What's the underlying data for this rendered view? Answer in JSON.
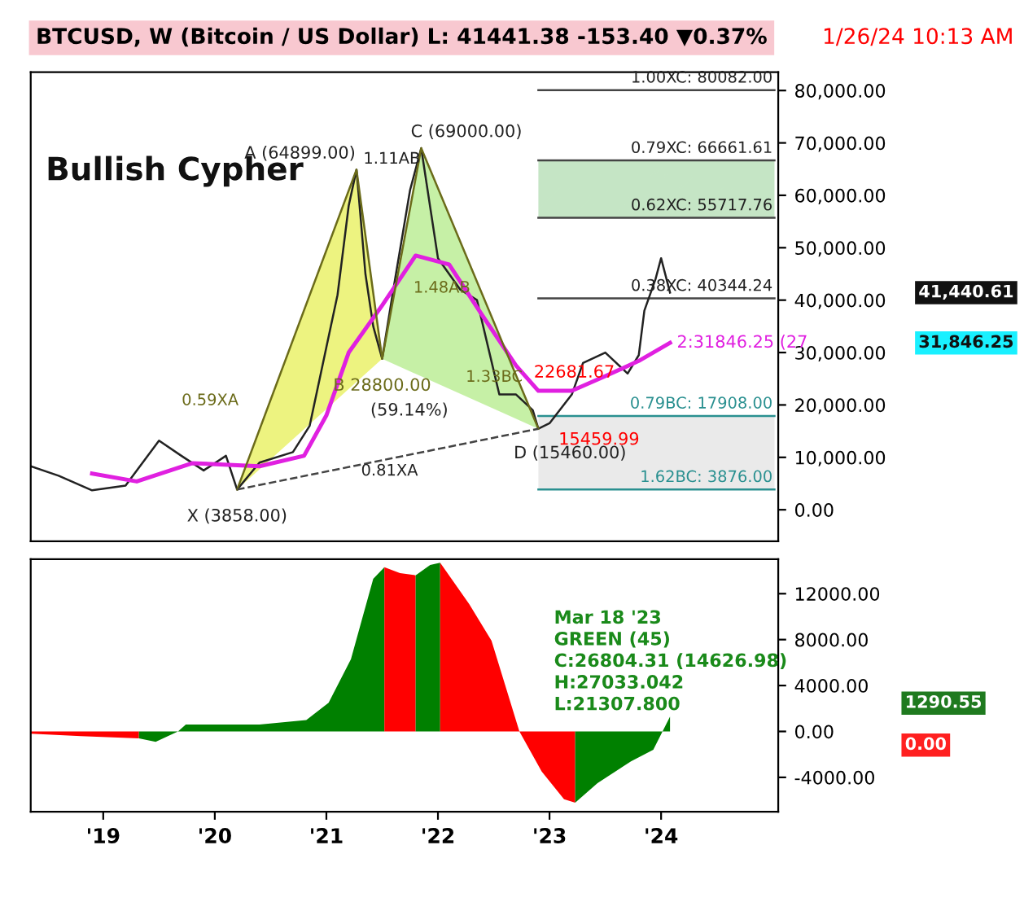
{
  "chart_data": [
    {
      "type": "line",
      "title": "BTCUSD, W (Bitcoin / US Dollar) L: 41441.38 -153.40 ▼0.37%",
      "xlim": [
        2018.35,
        2025.05
      ],
      "ylim": [
        -6000,
        83500
      ],
      "tick_labels": "y",
      "yticks": [
        {
          "value": 0,
          "label": "0.00"
        },
        {
          "value": 10000,
          "label": "10,000.00"
        },
        {
          "value": 20000,
          "label": "20,000.00"
        },
        {
          "value": 30000,
          "label": "30,000.00"
        },
        {
          "value": 40000,
          "label": "40,000.00"
        },
        {
          "value": 50000,
          "label": "50,000.00"
        },
        {
          "value": 60000,
          "label": "60,000.00"
        },
        {
          "value": 70000,
          "label": "70,000.00"
        },
        {
          "value": 80000,
          "label": "80,000.00"
        }
      ],
      "series": [
        {
          "color": "#222222",
          "x": [
            2018.35,
            2018.6,
            2018.9,
            2019.2,
            2019.5,
            2019.7,
            2019.9,
            2020.1,
            2020.2,
            2020.4,
            2020.7,
            2020.85,
            2021.0,
            2021.1,
            2021.2,
            2021.27,
            2021.35,
            2021.42,
            2021.5,
            2021.6,
            2021.75,
            2021.85,
            2022.0,
            2022.2,
            2022.35,
            2022.45,
            2022.55,
            2022.7,
            2022.85,
            2022.9,
            2023.0,
            2023.2,
            2023.3,
            2023.5,
            2023.7,
            2023.8,
            2023.85,
            2023.95,
            2024.0,
            2024.08
          ],
          "values": [
            8300,
            6500,
            3700,
            4600,
            13200,
            10300,
            7500,
            10300,
            3858,
            9000,
            11000,
            16000,
            31000,
            41000,
            58000,
            64899,
            45000,
            35000,
            28800,
            42000,
            61000,
            69000,
            48000,
            42000,
            40000,
            31000,
            22000,
            22000,
            19000,
            15460,
            16500,
            22000,
            28000,
            30000,
            26000,
            29500,
            38000,
            44000,
            48000,
            41441
          ]
        },
        {
          "color": "#e020e0",
          "x": [
            2018.9,
            2019.3,
            2019.8,
            2020.4,
            2020.8,
            2021.0,
            2021.2,
            2021.5,
            2021.8,
            2022.1,
            2022.4,
            2022.7,
            2022.9,
            2023.2,
            2023.5,
            2023.8,
            2024.08
          ],
          "values": [
            6900,
            5400,
            8900,
            8300,
            10300,
            18000,
            30000,
            39000,
            48500,
            46800,
            37000,
            27500,
            22700,
            22700,
            25500,
            28400,
            31846
          ]
        },
        {
          "color": "#6b6b1a",
          "x": [
            2020.2,
            2021.27,
            2021.5,
            2021.85,
            2022.9
          ],
          "values": [
            3858,
            64899,
            28800,
            69000,
            15460
          ]
        },
        {
          "color": "#444444",
          "line_style": "dashed",
          "x": [
            2020.2,
            2022.9
          ],
          "values": [
            3858,
            15460
          ]
        }
      ],
      "ref_lines": [
        {
          "axis": "y",
          "value": 80082,
          "label": "1.00XC: 80082.00",
          "color": "#444444"
        },
        {
          "axis": "y",
          "value": 66661.61,
          "label": "0.79XC: 66661.61",
          "color": "#444444"
        },
        {
          "axis": "y",
          "value": 55717.76,
          "label": "0.62XC: 55717.76",
          "color": "#444444"
        },
        {
          "axis": "y",
          "value": 40344.24,
          "label": "0.38XC: 40344.24",
          "color": "#444444"
        },
        {
          "axis": "y",
          "value": 17908,
          "label": "0.79BC: 17908.00",
          "color": "#2a9090"
        },
        {
          "axis": "y",
          "value": 3876,
          "label": "1.62BC: 3876.00",
          "color": "#2a9090"
        }
      ],
      "bands": [
        {
          "axis": "y",
          "from": 3876,
          "to": 17908,
          "color": "#dcdcdc"
        },
        {
          "axis": "y",
          "from": 55717.76,
          "to": 66661.61,
          "color": "#9fd49f"
        }
      ],
      "annotations": [
        "Bullish Cypher",
        "1/26/24 10:13 AM",
        {
          "text": "X (3858.00)",
          "x": 2020.2,
          "y": 3858
        },
        {
          "text": "A (64899.00)",
          "x": 2021.27,
          "y": 64899
        },
        {
          "text": "B 28800.00",
          "x": 2021.5,
          "y": 28800
        },
        {
          "text": "(59.14%)",
          "x": 2021.5,
          "y": 28800
        },
        {
          "text": "C (69000.00)",
          "x": 2021.85,
          "y": 69000
        },
        {
          "text": "D (15460.00)",
          "x": 2022.9,
          "y": 15460
        },
        "0.59XA",
        "1.11AB",
        "1.48AB",
        "1.33BC",
        "0.81XA",
        {
          "text": "22681.67",
          "x": 2022.9,
          "y": 22681.67
        },
        {
          "text": "15459.99",
          "x": 2023.0,
          "y": 15459.99
        },
        {
          "text": "2:31846.25 (27",
          "x": 2024.08,
          "y": 31846.25
        },
        "41,440.61",
        "31,846.25"
      ]
    },
    {
      "type": "area",
      "xlim": [
        2018.35,
        2025.05
      ],
      "ylim": [
        -7000,
        15000
      ],
      "xticks": [
        {
          "value": 2019,
          "label": "'19"
        },
        {
          "value": 2020,
          "label": "'20"
        },
        {
          "value": 2021,
          "label": "'21"
        },
        {
          "value": 2022,
          "label": "'22"
        },
        {
          "value": 2023,
          "label": "'23"
        },
        {
          "value": 2024,
          "label": "'24"
        }
      ],
      "yticks": [
        {
          "value": -4000,
          "label": "-4000.00"
        },
        {
          "value": 0,
          "label": "0.00"
        },
        {
          "value": 4000,
          "label": "4000.00"
        },
        {
          "value": 8000,
          "label": "8000.00"
        },
        {
          "value": 12000,
          "label": "12000.00"
        }
      ],
      "series": [
        {
          "color": "#ff0000",
          "x": [
            2018.35,
            2018.8,
            2019.32
          ],
          "values": [
            -200,
            -400,
            -600
          ]
        },
        {
          "color": "#008000",
          "x": [
            2019.32,
            2019.47,
            2019.67,
            2019.74,
            2020.4,
            2020.82,
            2021.02,
            2021.22,
            2021.42,
            2021.52
          ],
          "values": [
            -600,
            -900,
            0,
            600,
            600,
            1000,
            2500,
            6300,
            13300,
            14300
          ]
        },
        {
          "color": "#ff0000",
          "x": [
            2021.52,
            2021.66,
            2021.8
          ],
          "values": [
            14300,
            13800,
            13600
          ]
        },
        {
          "color": "#008000",
          "x": [
            2021.8,
            2021.93,
            2022.02
          ],
          "values": [
            13600,
            14500,
            14700
          ]
        },
        {
          "color": "#ff0000",
          "x": [
            2022.02,
            2022.28,
            2022.48,
            2022.73,
            2022.93,
            2023.13,
            2023.23
          ],
          "values": [
            14700,
            11100,
            7900,
            0,
            -3500,
            -5900,
            -6200
          ]
        },
        {
          "color": "#008000",
          "x": [
            2023.23,
            2023.43,
            2023.73,
            2023.93,
            2024.08
          ],
          "values": [
            -6200,
            -4500,
            -2600,
            -1600,
            1290
          ]
        }
      ],
      "annotations": [
        "Mar 18 '23\nGREEN (45)\nC:26804.31 (14626.98)\nH:27033.042\nL:21307.800",
        "1290.55",
        "0.00"
      ]
    }
  ]
}
